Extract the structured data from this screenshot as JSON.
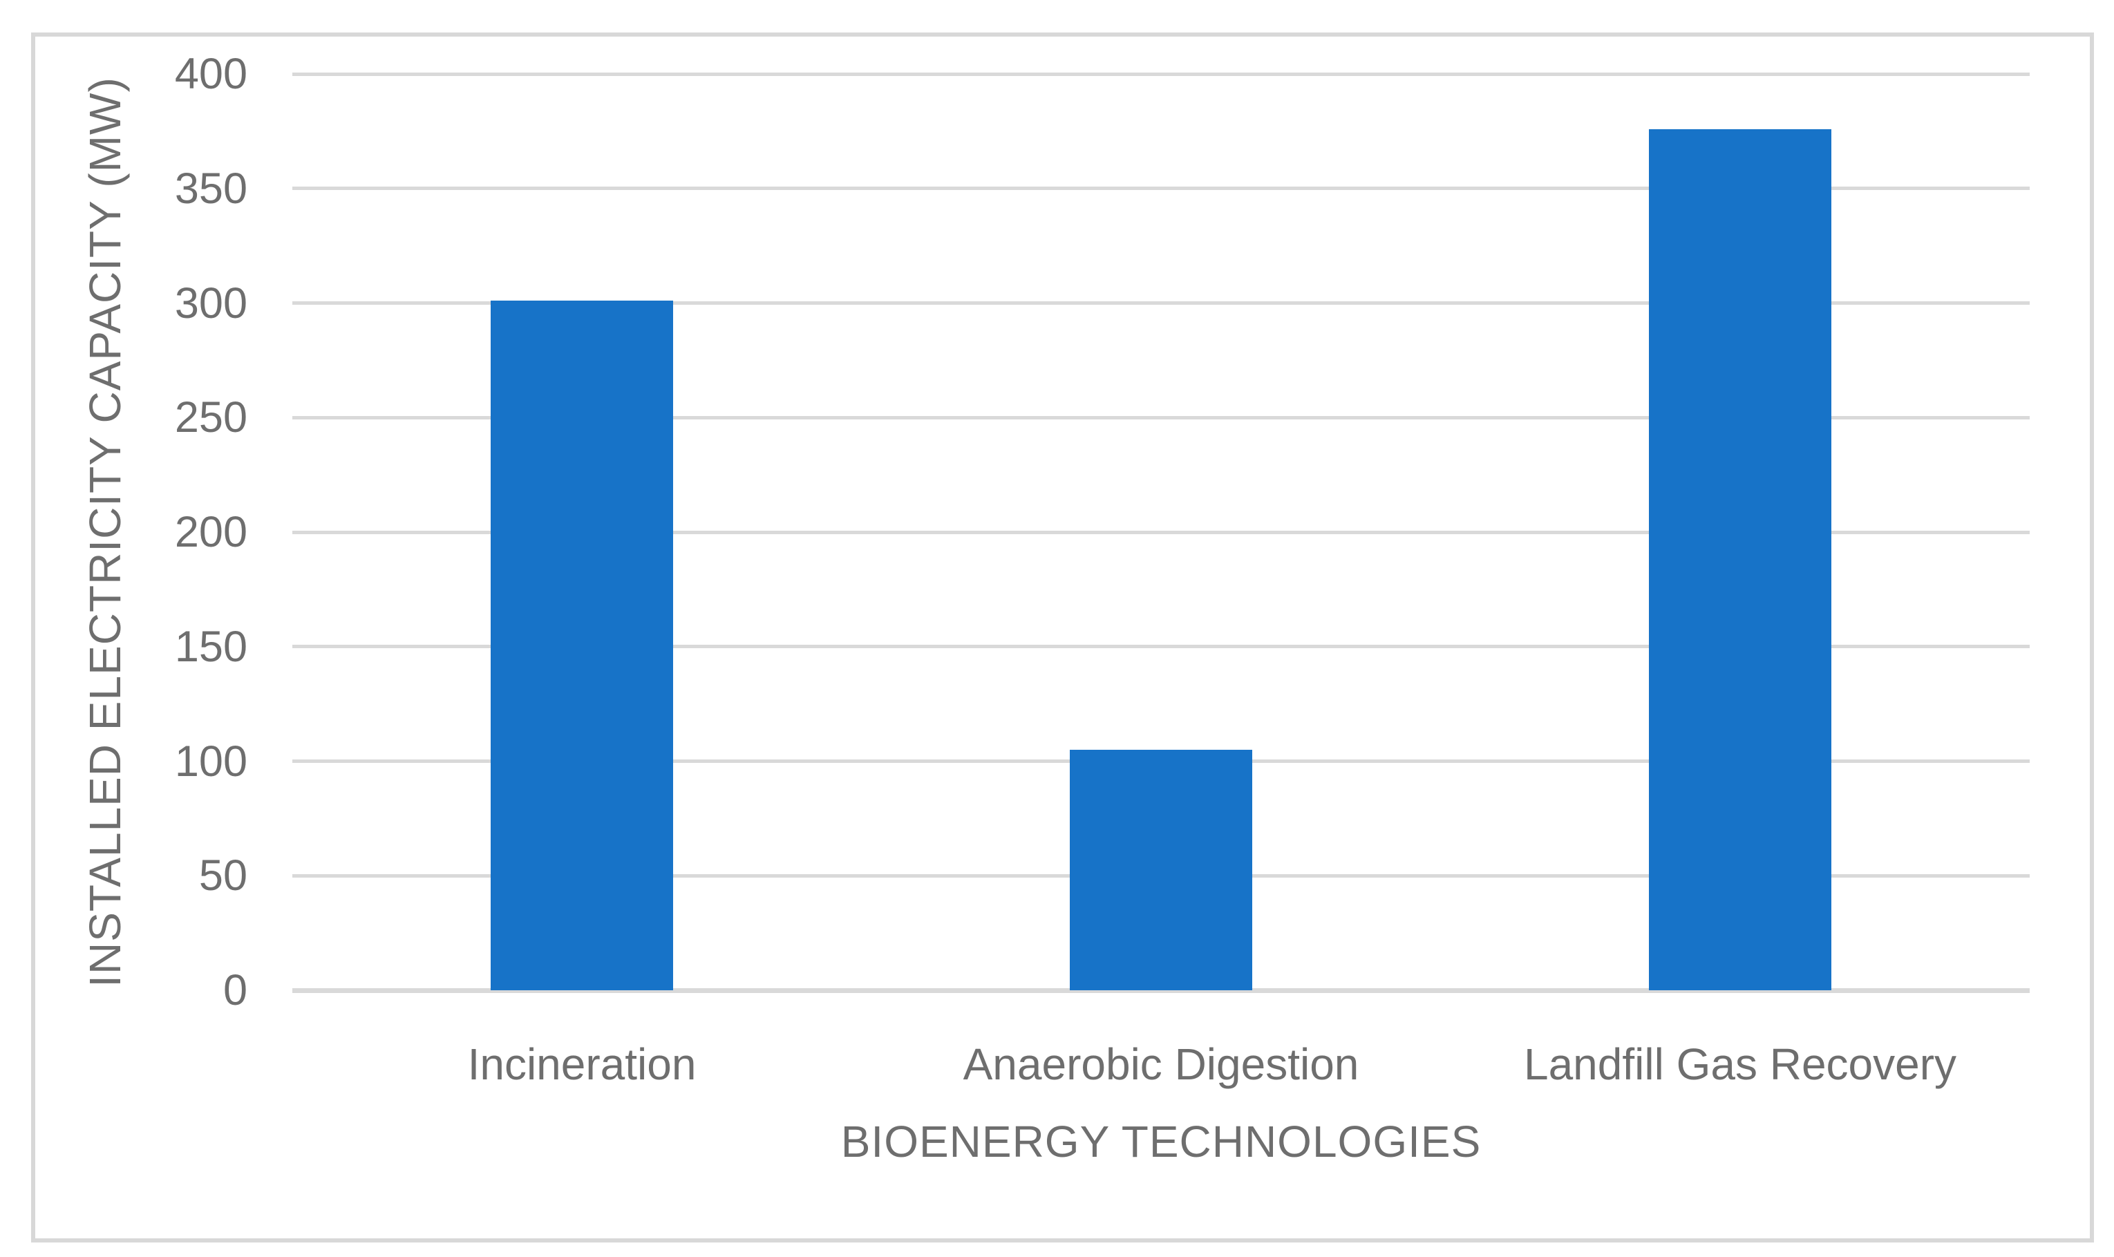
{
  "chart_data": {
    "type": "bar",
    "title": "",
    "categories": [
      "Incineration",
      "Anaerobic Digestion",
      "Landfill Gas Recovery"
    ],
    "values": [
      301,
      105,
      376
    ],
    "xlabel": "BIOENERGY TECHNOLOGIES",
    "ylabel": "INSTALLED ELECTRICITY CAPACITY (MW)",
    "ylim": [
      0,
      400
    ],
    "yticks": [
      0,
      50,
      100,
      150,
      200,
      250,
      300,
      350,
      400
    ],
    "grid": true,
    "legend": false,
    "bar_color": "#1773C8",
    "gridline_color": "#D9D9D9",
    "axis_line_color": "#D9D9D9",
    "text_color": "#6E6E6E",
    "frame_border_color": "#D8D8D8",
    "background_color": "#FFFFFF"
  }
}
